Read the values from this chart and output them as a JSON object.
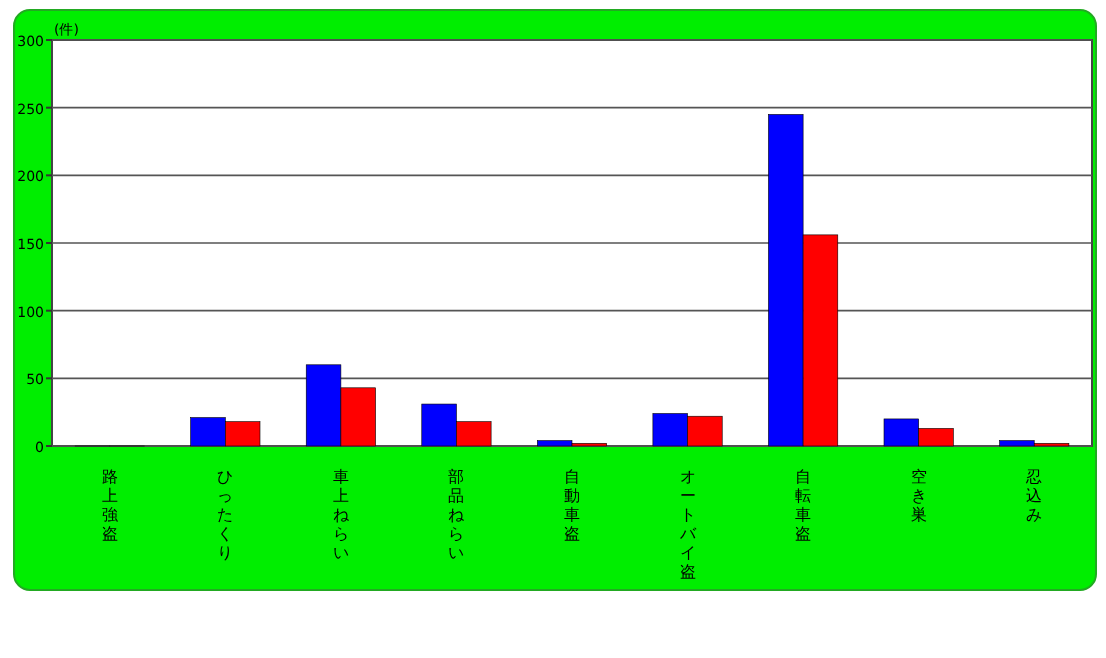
{
  "chart_data": {
    "type": "bar",
    "ylabel": "(件)",
    "categories": [
      "路上強盗",
      "ひったくり",
      "車上ねらい",
      "部品ねらい",
      "自動車盗",
      "オートバイ盗",
      "自転車盗",
      "空き巣",
      "忍込み"
    ],
    "series": [
      {
        "color": "#0000ff",
        "values": [
          0,
          21,
          60,
          31,
          4,
          24,
          245,
          20,
          4
        ]
      },
      {
        "color": "#ff0000",
        "values": [
          0,
          18,
          43,
          18,
          2,
          22,
          156,
          13,
          2
        ]
      }
    ],
    "ylim": [
      0,
      300
    ],
    "yticks": [
      0,
      50,
      100,
      150,
      200,
      250,
      300
    ],
    "grid": "y"
  }
}
